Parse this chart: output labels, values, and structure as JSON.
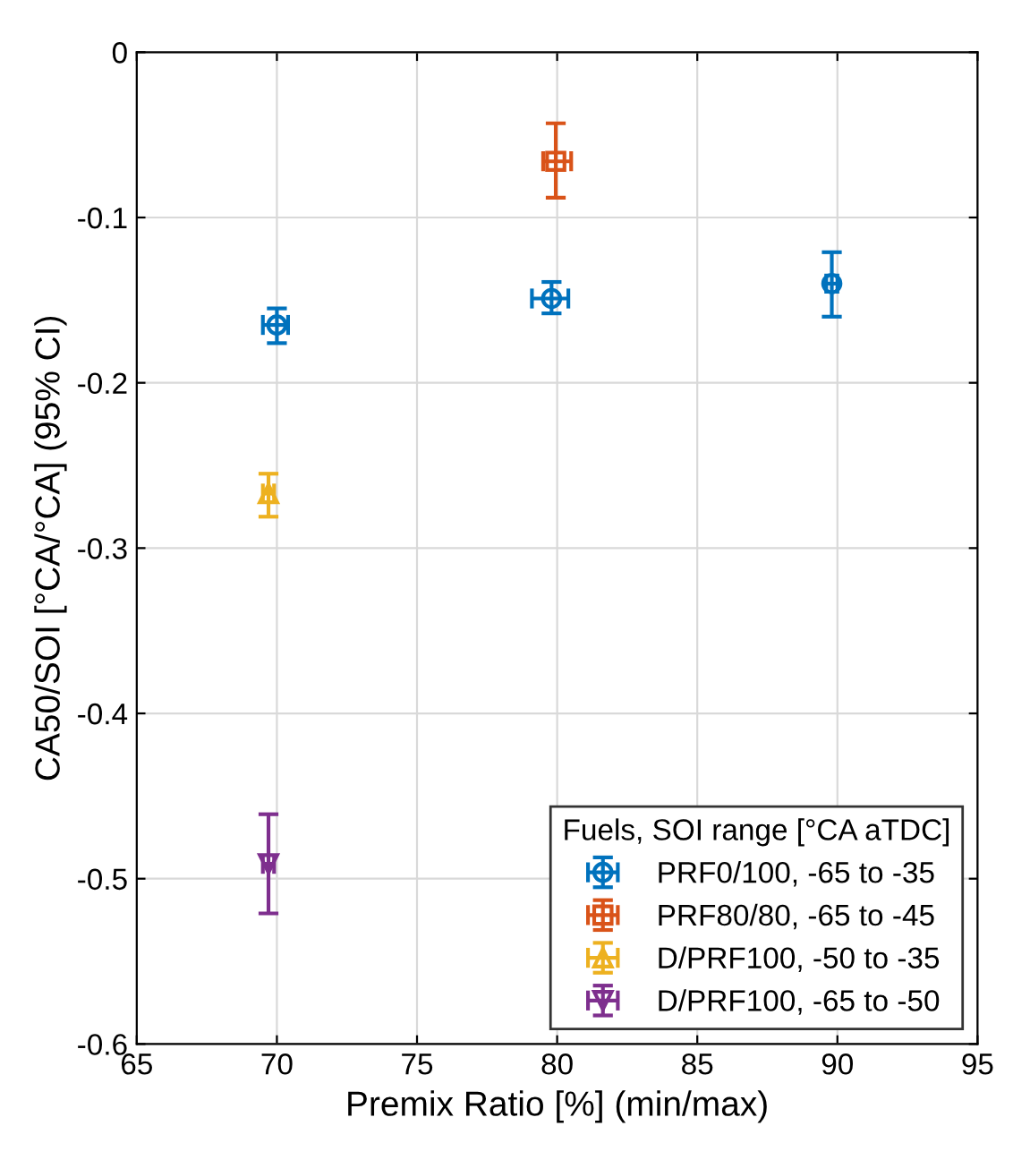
{
  "chart_data": {
    "type": "scatter",
    "xlabel": "Premix Ratio [%] (min/max)",
    "ylabel": "CA50/SOI [°CA/°CA] (95% CI)",
    "legend_title": "Fuels, SOI range [°CA aTDC]",
    "legend": "bottom right",
    "grid": true,
    "xlim": [
      65,
      95
    ],
    "xticks": [
      65,
      70,
      75,
      80,
      85,
      90,
      95
    ],
    "ylim": [
      -0.6,
      0
    ],
    "yticks": [
      -0.6,
      -0.5,
      -0.4,
      -0.3,
      -0.2,
      -0.1,
      0
    ],
    "series": [
      {
        "name": "PRF0/100, -65 to -35",
        "color": "#0072bd",
        "marker": "circle",
        "x": [
          70,
          79.8,
          89.8
        ],
        "values": [
          -0.165,
          -0.149,
          -0.14
        ],
        "errors": [
          [
            -0.176,
            -0.155
          ],
          [
            -0.158,
            -0.139
          ],
          [
            -0.16,
            -0.121
          ]
        ],
        "xerrors": [
          [
            69.5,
            70.4
          ],
          [
            79.1,
            80.4
          ],
          [
            89.6,
            90
          ]
        ]
      },
      {
        "name": "PRF80/80, -65 to -45",
        "color": "#d95319",
        "marker": "square",
        "x": [
          79.95
        ],
        "values": [
          -0.066
        ],
        "errors": [
          [
            -0.088,
            -0.043
          ]
        ],
        "xerrors": [
          [
            79.5,
            80.5
          ]
        ]
      },
      {
        "name": "D/PRF100, -50 to -35",
        "color": "#edb120",
        "marker": "triangle",
        "x": [
          69.7
        ],
        "values": [
          -0.267
        ],
        "errors": [
          [
            -0.281,
            -0.255
          ]
        ],
        "xerrors": [
          [
            69.5,
            69.9
          ]
        ]
      },
      {
        "name": "D/PRF100, -65 to -50",
        "color": "#7e2f8e",
        "marker": "triangle-down",
        "x": [
          69.7
        ],
        "values": [
          -0.491
        ],
        "errors": [
          [
            -0.521,
            -0.461
          ]
        ],
        "xerrors": [
          [
            69.5,
            69.9
          ]
        ]
      }
    ]
  }
}
